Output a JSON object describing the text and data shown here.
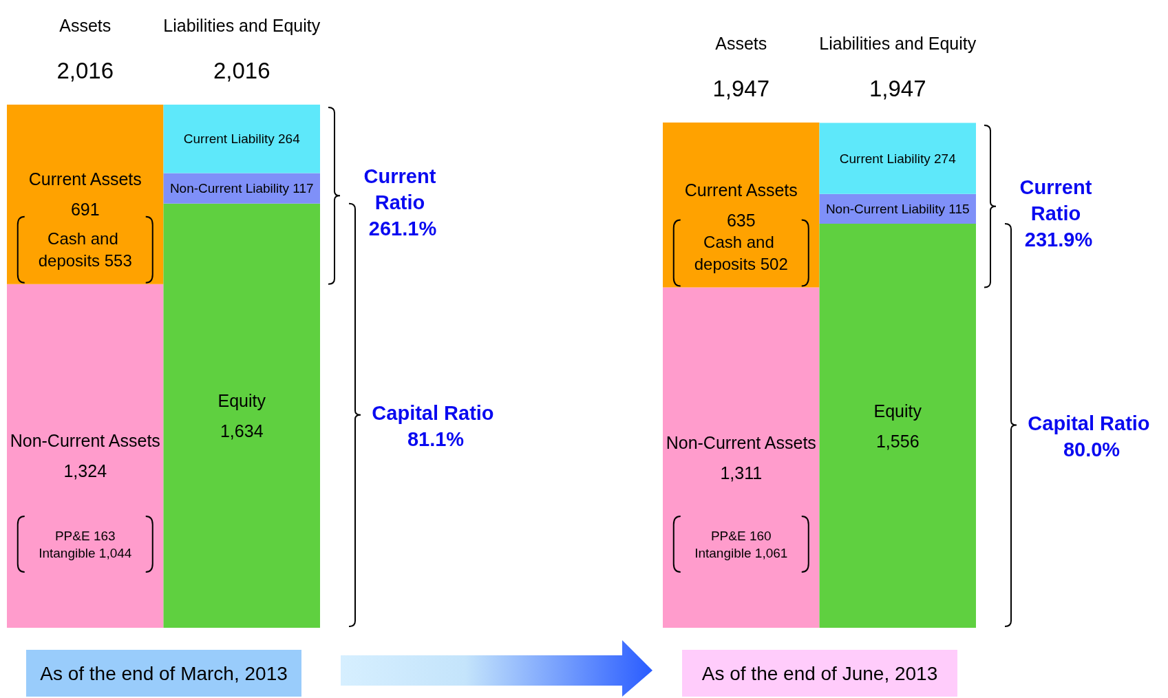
{
  "chart_data": [
    {
      "type": "bar",
      "stacked": true,
      "categories": [
        "Assets",
        "Liabilities and Equity"
      ],
      "tick_labels": "x",
      "totals": [
        "2,016",
        "2,016"
      ],
      "series": [
        {
          "name": "Non-Current Assets",
          "color": "#ff9ccc",
          "values": [
            1324,
            null
          ],
          "value_labels": [
            "1,324",
            null
          ]
        },
        {
          "name": "Current Assets",
          "color": "#ffa200",
          "values": [
            691,
            null
          ],
          "value_labels": [
            "691",
            null
          ]
        },
        {
          "name": "Equity",
          "color": "#5fd040",
          "values": [
            null,
            1634
          ],
          "value_labels": [
            null,
            "1,634"
          ]
        },
        {
          "name": "Non-Current Liability",
          "color": "#7f90f8",
          "values": [
            null,
            117
          ],
          "value_labels": [
            null,
            "117"
          ]
        },
        {
          "name": "Current Liability",
          "color": "#5ee8fa",
          "values": [
            null,
            264
          ],
          "value_labels": [
            null,
            "264"
          ]
        }
      ],
      "annotations": [
        "Current Ratio 261.1%",
        "Capital Ratio 81.1%",
        "As of the end of March, 2013",
        "Cash and deposits 553",
        "PP&E 163",
        "Intangible 1,044"
      ]
    },
    {
      "type": "bar",
      "stacked": true,
      "categories": [
        "Assets",
        "Liabilities and Equity"
      ],
      "tick_labels": "x",
      "totals": [
        "1,947",
        "1,947"
      ],
      "series": [
        {
          "name": "Non-Current Assets",
          "color": "#ff9ccc",
          "values": [
            1311,
            null
          ],
          "value_labels": [
            "1,311",
            null
          ]
        },
        {
          "name": "Current Assets",
          "color": "#ffa200",
          "values": [
            635,
            null
          ],
          "value_labels": [
            "635",
            null
          ]
        },
        {
          "name": "Equity",
          "color": "#5fd040",
          "values": [
            null,
            1556
          ],
          "value_labels": [
            null,
            "1,556"
          ]
        },
        {
          "name": "Non-Current Liability",
          "color": "#7f90f8",
          "values": [
            null,
            115
          ],
          "value_labels": [
            null,
            "115"
          ]
        },
        {
          "name": "Current Liability",
          "color": "#5ee8fa",
          "values": [
            null,
            274
          ],
          "value_labels": [
            null,
            "274"
          ]
        }
      ],
      "annotations": [
        "Current Ratio 231.9%",
        "Capital Ratio 80.0%",
        "As of the end of June, 2013",
        "Cash and deposits 502",
        "PP&E 160",
        "Intangible 1,061"
      ]
    }
  ]
}
